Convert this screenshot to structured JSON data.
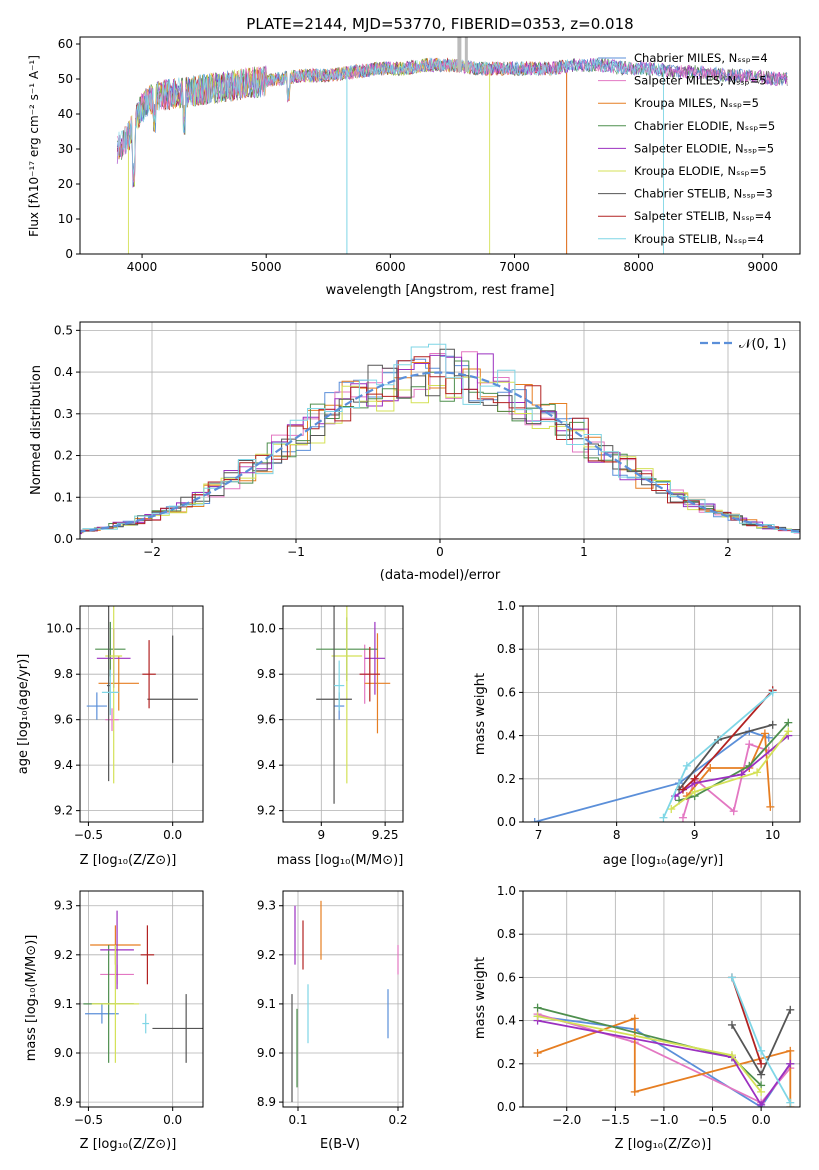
{
  "colors": {
    "Chabrier MILES": "#5b8fd9",
    "Salpeter MILES": "#e377c2",
    "Kroupa MILES": "#e67e22",
    "Chabrier ELODIE": "#4e8f4e",
    "Salpeter ELODIE": "#9b30c0",
    "Kroupa ELODIE": "#d4e157",
    "Chabrier STELIB": "#555555",
    "Salpeter STELIB": "#b22222",
    "Kroupa STELIB": "#7fd6e6"
  },
  "chart_data": [
    {
      "id": "spectrum",
      "type": "line",
      "title": "PLATE=2144, MJD=53770, FIBERID=0353, z=0.018",
      "xlabel": "wavelength [Angstrom, rest frame]",
      "ylabel": "Flux [fλ10⁻¹⁷ erg cm⁻² s⁻¹ A⁻¹]",
      "xlim": [
        3500,
        9300
      ],
      "ylim": [
        0,
        62
      ],
      "xticks": [
        4000,
        5000,
        6000,
        7000,
        8000,
        9000
      ],
      "yticks": [
        0,
        10,
        20,
        30,
        40,
        50,
        60
      ],
      "x": [
        3800,
        3900,
        4000,
        4100,
        4300,
        4500,
        4700,
        4900,
        5100,
        5300,
        5500,
        5700,
        5900,
        6100,
        6300,
        6500,
        6700,
        6900,
        7100,
        7300,
        7500,
        7700,
        7900,
        8100,
        8300,
        8500,
        8700,
        8900,
        9100,
        9200
      ],
      "y": [
        30,
        34,
        42,
        45,
        46,
        47,
        48,
        49,
        50,
        51,
        51,
        52,
        53,
        53,
        54,
        54,
        53,
        53,
        53,
        53,
        54,
        54,
        53,
        53,
        52,
        52,
        51,
        51,
        50,
        50
      ],
      "legend": [
        "Chabrier MILES, Nₛₛₚ=4",
        "Salpeter MILES, Nₛₛₚ=5",
        "Kroupa MILES, Nₛₛₚ=5",
        "Chabrier ELODIE, Nₛₛₚ=5",
        "Salpeter ELODIE, Nₛₛₚ=5",
        "Kroupa ELODIE, Nₛₛₚ=5",
        "Chabrier STELIB, Nₛₛₚ=3",
        "Salpeter STELIB, Nₛₛₚ=4",
        "Kroupa STELIB, Nₛₛₚ=4"
      ],
      "legend_placement": "upper right"
    },
    {
      "id": "residuals",
      "type": "line",
      "xlabel": "(data-model)/error",
      "ylabel": "Normed distribution",
      "xlim": [
        -2.5,
        2.5
      ],
      "ylim": [
        0,
        0.52
      ],
      "xticks": [
        -2,
        -1,
        0,
        1,
        2
      ],
      "yticks": [
        0.0,
        0.1,
        0.2,
        0.3,
        0.4,
        0.5
      ],
      "gaussian_label": "𝒩(0, 1)",
      "grid": true
    },
    {
      "id": "age_vs_z",
      "type": "scatter",
      "xlabel": "Z [log₁₀(Z/Z⊙)]",
      "ylabel": "age  [log₁₀(age/yr)]",
      "xlim": [
        -0.55,
        0.18
      ],
      "ylim": [
        9.15,
        10.1
      ],
      "xticks": [
        -0.5,
        0.0
      ],
      "yticks": [
        9.2,
        9.4,
        9.6,
        9.8,
        10.0
      ],
      "points": [
        {
          "x": -0.45,
          "y": 9.66,
          "xerr": 0.06,
          "yerr": 0.06,
          "c": "Chabrier MILES"
        },
        {
          "x": -0.36,
          "y": 9.6,
          "xerr": 0.04,
          "yerr": 0.05,
          "c": "Salpeter MILES"
        },
        {
          "x": -0.32,
          "y": 9.76,
          "xerr": 0.12,
          "yerr": 0.12,
          "c": "Kroupa MILES"
        },
        {
          "x": -0.37,
          "y": 9.91,
          "xerr": 0.09,
          "yerr": 0.12,
          "c": "Chabrier ELODIE"
        },
        {
          "x": -0.35,
          "y": 9.87,
          "xerr": 0.1,
          "yerr": 0.13,
          "c": "Salpeter ELODIE"
        },
        {
          "x": -0.35,
          "y": 9.88,
          "xerr": 0.05,
          "yerr": 0.56,
          "c": "Kroupa ELODIE"
        },
        {
          "x": -0.38,
          "y": 9.75,
          "xerr": 0.01,
          "yerr": 0.42,
          "c": "Chabrier STELIB"
        },
        {
          "x": 0.0,
          "y": 9.69,
          "xerr": 0.15,
          "yerr": 0.28,
          "c": "Chabrier STELIB"
        },
        {
          "x": -0.14,
          "y": 9.8,
          "xerr": 0.04,
          "yerr": 0.15,
          "c": "Salpeter STELIB"
        },
        {
          "x": -0.37,
          "y": 9.72,
          "xerr": 0.05,
          "yerr": 0.1,
          "c": "Kroupa STELIB"
        }
      ]
    },
    {
      "id": "age_vs_mass",
      "type": "scatter",
      "xlabel": "mass [log₁₀(M/M⊙)]",
      "ylabel": "",
      "xlim": [
        8.85,
        9.32
      ],
      "ylim": [
        9.15,
        10.1
      ],
      "xticks": [
        9.0,
        9.25
      ],
      "yticks": [
        9.2,
        9.4,
        9.6,
        9.8,
        10.0
      ],
      "points": [
        {
          "x": 9.07,
          "y": 9.66,
          "xerr": 0.02,
          "yerr": 0.06,
          "c": "Chabrier MILES"
        },
        {
          "x": 9.17,
          "y": 9.8,
          "xerr": 0.02,
          "yerr": 0.13,
          "c": "Salpeter MILES"
        },
        {
          "x": 9.22,
          "y": 9.76,
          "xerr": 0.05,
          "yerr": 0.22,
          "c": "Kroupa MILES"
        },
        {
          "x": 9.1,
          "y": 9.91,
          "xerr": 0.12,
          "yerr": 0.14,
          "c": "Chabrier ELODIE"
        },
        {
          "x": 9.21,
          "y": 9.87,
          "xerr": 0.04,
          "yerr": 0.16,
          "c": "Salpeter ELODIE"
        },
        {
          "x": 9.1,
          "y": 9.88,
          "xerr": 0.06,
          "yerr": 0.56,
          "c": "Kroupa ELODIE"
        },
        {
          "x": 9.05,
          "y": 9.69,
          "xerr": 0.07,
          "yerr": 0.46,
          "c": "Chabrier STELIB"
        },
        {
          "x": 9.19,
          "y": 9.8,
          "xerr": 0.04,
          "yerr": 0.12,
          "c": "Salpeter STELIB"
        },
        {
          "x": 9.07,
          "y": 9.75,
          "xerr": 0.02,
          "yerr": 0.11,
          "c": "Kroupa STELIB"
        }
      ]
    },
    {
      "id": "weight_vs_age",
      "type": "line",
      "xlabel": "age  [log₁₀(age/yr)]",
      "ylabel": "mass weight",
      "xlim": [
        6.8,
        10.35
      ],
      "ylim": [
        0,
        1.0
      ],
      "xticks": [
        7,
        8,
        9,
        10
      ],
      "yticks": [
        0.0,
        0.2,
        0.4,
        0.6,
        0.8,
        1.0
      ],
      "series": [
        {
          "c": "Chabrier MILES",
          "x": [
            6.95,
            8.8,
            9.7,
            9.95
          ],
          "y": [
            0.0,
            0.18,
            0.42,
            0.39
          ]
        },
        {
          "c": "Salpeter MILES",
          "x": [
            8.85,
            9.0,
            9.5,
            9.7,
            9.95
          ],
          "y": [
            0.02,
            0.2,
            0.05,
            0.36,
            0.33
          ]
        },
        {
          "c": "Kroupa MILES",
          "x": [
            8.9,
            9.2,
            9.7,
            9.9,
            9.97
          ],
          "y": [
            0.12,
            0.25,
            0.25,
            0.41,
            0.07
          ]
        },
        {
          "c": "Chabrier ELODIE",
          "x": [
            8.8,
            9.0,
            9.7,
            10.2
          ],
          "y": [
            0.1,
            0.12,
            0.26,
            0.46
          ]
        },
        {
          "c": "Salpeter ELODIE",
          "x": [
            8.75,
            9.0,
            9.6,
            10.2
          ],
          "y": [
            0.12,
            0.18,
            0.22,
            0.4
          ]
        },
        {
          "c": "Kroupa ELODIE",
          "x": [
            8.7,
            9.0,
            9.8,
            10.2
          ],
          "y": [
            0.06,
            0.14,
            0.23,
            0.42
          ]
        },
        {
          "c": "Chabrier STELIB",
          "x": [
            8.8,
            9.3,
            10.0
          ],
          "y": [
            0.15,
            0.38,
            0.45
          ]
        },
        {
          "c": "Salpeter STELIB",
          "x": [
            8.85,
            9.0,
            10.0
          ],
          "y": [
            0.15,
            0.2,
            0.61
          ]
        },
        {
          "c": "Kroupa STELIB",
          "x": [
            8.6,
            8.9,
            10.0
          ],
          "y": [
            0.02,
            0.26,
            0.6
          ]
        }
      ],
      "grid": true
    },
    {
      "id": "mass_vs_z",
      "type": "scatter",
      "xlabel": "Z [log₁₀(Z/Z⊙)]",
      "ylabel": "mass [log₁₀(M/M⊙)]",
      "xlim": [
        -0.55,
        0.18
      ],
      "ylim": [
        8.89,
        9.33
      ],
      "xticks": [
        -0.5,
        0.0
      ],
      "yticks": [
        8.9,
        9.0,
        9.1,
        9.2,
        9.3
      ],
      "points": [
        {
          "x": -0.42,
          "y": 9.08,
          "xerr": 0.1,
          "yerr": 0.02,
          "c": "Chabrier MILES"
        },
        {
          "x": -0.33,
          "y": 9.16,
          "xerr": 0.1,
          "yerr": 0.02,
          "c": "Salpeter MILES"
        },
        {
          "x": -0.34,
          "y": 9.22,
          "xerr": 0.15,
          "yerr": 0.04,
          "c": "Kroupa MILES"
        },
        {
          "x": -0.38,
          "y": 9.1,
          "xerr": 0.15,
          "yerr": 0.12,
          "c": "Chabrier ELODIE"
        },
        {
          "x": -0.33,
          "y": 9.21,
          "xerr": 0.1,
          "yerr": 0.08,
          "c": "Salpeter ELODIE"
        },
        {
          "x": -0.34,
          "y": 9.1,
          "xerr": 0.14,
          "yerr": 0.12,
          "c": "Kroupa ELODIE"
        },
        {
          "x": 0.08,
          "y": 9.05,
          "xerr": 0.2,
          "yerr": 0.07,
          "c": "Chabrier STELIB"
        },
        {
          "x": -0.15,
          "y": 9.2,
          "xerr": 0.04,
          "yerr": 0.06,
          "c": "Salpeter STELIB"
        },
        {
          "x": -0.16,
          "y": 9.06,
          "xerr": 0.02,
          "yerr": 0.02,
          "c": "Kroupa STELIB"
        }
      ]
    },
    {
      "id": "mass_vs_ebv",
      "type": "scatter",
      "xlabel": "E(B-V)",
      "ylabel": "",
      "xlim": [
        0.085,
        0.205
      ],
      "ylim": [
        8.89,
        9.33
      ],
      "xticks": [
        0.1,
        0.2
      ],
      "yticks": [
        8.9,
        9.0,
        9.1,
        9.2,
        9.3
      ],
      "points": [
        {
          "x": 0.094,
          "y": 9.01,
          "xerr": 0.0,
          "yerr": 0.11,
          "c": "Chabrier STELIB"
        },
        {
          "x": 0.097,
          "y": 9.24,
          "xerr": 0.0,
          "yerr": 0.06,
          "c": "Salpeter ELODIE"
        },
        {
          "x": 0.099,
          "y": 9.01,
          "xerr": 0.0,
          "yerr": 0.08,
          "c": "Chabrier ELODIE"
        },
        {
          "x": 0.105,
          "y": 9.22,
          "xerr": 0.0,
          "yerr": 0.05,
          "c": "Salpeter STELIB"
        },
        {
          "x": 0.11,
          "y": 9.08,
          "xerr": 0.0,
          "yerr": 0.06,
          "c": "Kroupa STELIB"
        },
        {
          "x": 0.123,
          "y": 9.25,
          "xerr": 0.0,
          "yerr": 0.06,
          "c": "Kroupa MILES"
        },
        {
          "x": 0.19,
          "y": 9.08,
          "xerr": 0.0,
          "yerr": 0.05,
          "c": "Chabrier MILES"
        },
        {
          "x": 0.2,
          "y": 9.19,
          "xerr": 0.0,
          "yerr": 0.03,
          "c": "Salpeter MILES"
        }
      ]
    },
    {
      "id": "weight_vs_z",
      "type": "line",
      "xlabel": "Z [log₁₀(Z/Z⊙)]",
      "ylabel": "mass weight",
      "xlim": [
        -2.45,
        0.4
      ],
      "ylim": [
        0,
        1.0
      ],
      "xticks": [
        -2.0,
        -1.5,
        -1.0,
        -0.5,
        0.0
      ],
      "yticks": [
        0.0,
        0.2,
        0.4,
        0.6,
        0.8,
        1.0
      ],
      "series": [
        {
          "c": "Chabrier MILES",
          "x": [
            -2.3,
            -1.3,
            0.0,
            0.3
          ],
          "y": [
            0.42,
            0.36,
            0.0,
            0.2
          ]
        },
        {
          "c": "Salpeter MILES",
          "x": [
            -2.3,
            -1.3,
            0.0,
            0.3
          ],
          "y": [
            0.43,
            0.3,
            0.02,
            0.18
          ]
        },
        {
          "c": "Kroupa MILES",
          "x": [
            -2.3,
            -1.3,
            -1.3,
            0.3,
            0.3
          ],
          "y": [
            0.25,
            0.41,
            0.07,
            0.26,
            0.0
          ]
        },
        {
          "c": "Chabrier ELODIE",
          "x": [
            -2.3,
            -0.3,
            0.0
          ],
          "y": [
            0.46,
            0.23,
            0.1
          ]
        },
        {
          "c": "Salpeter ELODIE",
          "x": [
            -2.3,
            -0.3,
            0.0,
            0.3
          ],
          "y": [
            0.4,
            0.23,
            0.01,
            0.2
          ]
        },
        {
          "c": "Kroupa ELODIE",
          "x": [
            -2.3,
            -0.3,
            0.0
          ],
          "y": [
            0.42,
            0.24,
            0.07
          ]
        },
        {
          "c": "Chabrier STELIB",
          "x": [
            -0.3,
            0.0,
            0.3
          ],
          "y": [
            0.38,
            0.15,
            0.45
          ]
        },
        {
          "c": "Salpeter STELIB",
          "x": [
            -0.3,
            0.0
          ],
          "y": [
            0.6,
            0.2
          ]
        },
        {
          "c": "Kroupa STELIB",
          "x": [
            -0.3,
            0.0,
            0.3
          ],
          "y": [
            0.6,
            0.26,
            0.02
          ]
        }
      ],
      "grid": true
    }
  ]
}
